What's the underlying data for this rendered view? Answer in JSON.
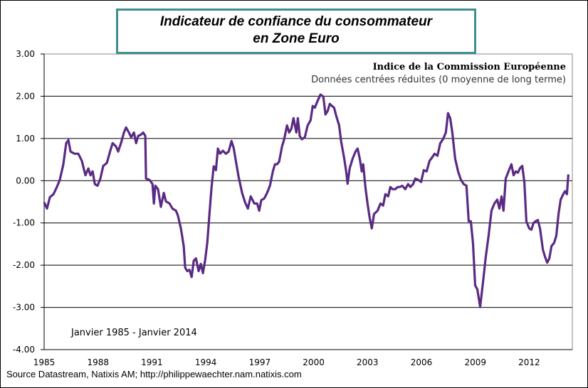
{
  "chart_data": {
    "type": "line",
    "title": [
      "Indicateur de confiance du consommateur",
      "en Zone Euro"
    ],
    "subtitle": "Indice de la Commission Européenne",
    "subtitle2": "Données centrées réduites (0 moyenne de long terme)",
    "annotation": "Janvier 1985 - Janvier 2014",
    "source": "Source Datastream, Natixis AM; http://philippewaechter.nam.natixis.com",
    "xlabel": "",
    "ylabel": "",
    "xlim": [
      1985,
      2014.4
    ],
    "ylim": [
      -4,
      3
    ],
    "x_ticks": [
      "1985",
      "1988",
      "1991",
      "1994",
      "1997",
      "2000",
      "2003",
      "2006",
      "2009",
      "2012"
    ],
    "y_ticks": [
      "3.00",
      "2.00",
      "1.00",
      "0.00",
      "-1.00",
      "-2.00",
      "-3.00",
      "-4.00"
    ],
    "grid": "horizontal",
    "line_color": "#5a2a84",
    "title_border_color": "#3f8f8c",
    "series": [
      {
        "x": [
          1985.0,
          1985.16,
          1985.32,
          1985.52,
          1985.71,
          1985.87,
          1986.07,
          1986.23,
          1986.35,
          1986.47,
          1986.7,
          1986.9,
          1987.1,
          1987.3,
          1987.46,
          1987.58,
          1987.7,
          1987.82,
          1987.97,
          1988.13,
          1988.29,
          1988.49,
          1988.69,
          1988.81,
          1989.0,
          1989.12,
          1989.28,
          1989.44,
          1989.56,
          1989.72,
          1989.84,
          1990.0,
          1990.12,
          1990.23,
          1990.39,
          1990.51,
          1990.63,
          1990.67,
          1990.87,
          1991.03,
          1991.11,
          1991.19,
          1991.34,
          1991.5,
          1991.66,
          1991.78,
          1991.98,
          1992.14,
          1992.34,
          1992.45,
          1992.61,
          1992.77,
          1992.85,
          1992.97,
          1993.09,
          1993.21,
          1993.33,
          1993.45,
          1993.6,
          1993.72,
          1993.84,
          1993.96,
          1994.08,
          1994.2,
          1994.32,
          1994.44,
          1994.56,
          1994.67,
          1994.79,
          1994.95,
          1995.11,
          1995.27,
          1995.43,
          1995.55,
          1995.67,
          1995.82,
          1996.02,
          1996.18,
          1996.34,
          1996.5,
          1996.7,
          1996.86,
          1996.97,
          1997.09,
          1997.25,
          1997.41,
          1997.57,
          1997.73,
          1997.85,
          1997.97,
          1998.08,
          1998.24,
          1998.36,
          1998.52,
          1998.64,
          1998.76,
          1998.88,
          1999.04,
          1999.12,
          1999.23,
          1999.35,
          1999.51,
          1999.67,
          1999.83,
          1999.95,
          2000.07,
          2000.23,
          2000.38,
          2000.54,
          2000.66,
          2000.78,
          2000.9,
          2001.02,
          2001.14,
          2001.26,
          2001.42,
          2001.53,
          2001.69,
          2001.81,
          2001.89,
          2002.01,
          2002.17,
          2002.33,
          2002.45,
          2002.57,
          2002.68,
          2002.76,
          2002.88,
          2003.0,
          2003.12,
          2003.24,
          2003.36,
          2003.56,
          2003.72,
          2003.87,
          2003.99,
          2004.15,
          2004.27,
          2004.39,
          2004.55,
          2004.67,
          2004.79,
          2004.94,
          2005.1,
          2005.26,
          2005.38,
          2005.54,
          2005.66,
          2005.82,
          2005.98,
          2006.13,
          2006.29,
          2006.45,
          2006.61,
          2006.73,
          2006.89,
          2007.05,
          2007.2,
          2007.36,
          2007.48,
          2007.6,
          2007.72,
          2007.88,
          2008.04,
          2008.2,
          2008.35,
          2008.51,
          2008.63,
          2008.75,
          2008.87,
          2008.99,
          2009.11,
          2009.27,
          2009.43,
          2009.58,
          2009.74,
          2009.9,
          2010.06,
          2010.22,
          2010.34,
          2010.46,
          2010.57,
          2010.69,
          2010.85,
          2011.01,
          2011.13,
          2011.25,
          2011.37,
          2011.49,
          2011.61,
          2011.73,
          2011.84,
          2012.0,
          2012.12,
          2012.24,
          2012.36,
          2012.48,
          2012.6,
          2012.76,
          2012.88,
          2013.0,
          2013.12,
          2013.24,
          2013.39,
          2013.51,
          2013.63,
          2013.75,
          2013.87,
          2013.99,
          2014.1,
          2014.18
        ],
        "y": [
          -0.51,
          -0.66,
          -0.39,
          -0.32,
          -0.15,
          0.02,
          0.39,
          0.89,
          0.96,
          0.69,
          0.64,
          0.64,
          0.47,
          0.13,
          0.29,
          0.13,
          0.22,
          -0.08,
          -0.12,
          0.05,
          0.35,
          0.42,
          0.72,
          0.89,
          0.81,
          0.69,
          0.89,
          1.14,
          1.26,
          1.14,
          1.03,
          1.14,
          0.89,
          1.06,
          1.09,
          1.14,
          1.06,
          0.05,
          0.02,
          -0.08,
          -0.54,
          -0.12,
          -0.2,
          -0.62,
          -0.29,
          -0.49,
          -0.54,
          -0.66,
          -0.71,
          -0.83,
          -1.13,
          -1.55,
          -2.06,
          -2.14,
          -2.11,
          -2.28,
          -1.89,
          -1.84,
          -2.14,
          -1.97,
          -2.19,
          -1.89,
          -1.47,
          -0.79,
          -0.15,
          0.34,
          0.25,
          0.76,
          0.64,
          0.71,
          0.64,
          0.69,
          0.94,
          0.77,
          0.47,
          0.1,
          -0.29,
          -0.51,
          -0.66,
          -0.37,
          -0.54,
          -0.54,
          -0.71,
          -0.46,
          -0.42,
          -0.29,
          -0.12,
          0.22,
          0.39,
          0.39,
          0.45,
          0.81,
          0.98,
          1.31,
          1.14,
          1.23,
          1.48,
          1.14,
          1.48,
          1.06,
          0.98,
          1.03,
          1.31,
          1.43,
          1.77,
          1.73,
          1.9,
          2.04,
          1.99,
          1.57,
          1.65,
          1.82,
          1.77,
          1.73,
          1.53,
          1.31,
          0.93,
          0.56,
          0.22,
          -0.07,
          0.3,
          0.52,
          0.69,
          0.76,
          0.52,
          0.22,
          0.39,
          -0.15,
          -0.54,
          -0.88,
          -1.13,
          -0.79,
          -0.71,
          -0.54,
          -0.59,
          -0.32,
          -0.37,
          -0.15,
          -0.2,
          -0.2,
          -0.15,
          -0.15,
          -0.12,
          -0.2,
          -0.08,
          -0.15,
          -0.08,
          0.05,
          0.02,
          -0.03,
          0.25,
          0.22,
          0.47,
          0.56,
          0.64,
          0.59,
          0.89,
          0.98,
          1.14,
          1.6,
          1.48,
          1.14,
          0.52,
          0.22,
          0.02,
          -0.08,
          -0.12,
          -0.96,
          -0.96,
          -1.47,
          -2.48,
          -2.57,
          -2.99,
          -2.39,
          -1.8,
          -1.3,
          -0.71,
          -0.54,
          -0.45,
          -0.66,
          -0.37,
          -0.71,
          0.05,
          0.22,
          0.39,
          0.13,
          0.22,
          0.19,
          0.3,
          0.35,
          -0.03,
          -0.96,
          -1.13,
          -1.16,
          -1.0,
          -0.96,
          -0.93,
          -1.13,
          -1.63,
          -1.8,
          -1.94,
          -1.84,
          -1.55,
          -1.47,
          -1.3,
          -0.79,
          -0.45,
          -0.34,
          -0.25,
          -0.32,
          0.15
        ]
      }
    ]
  }
}
